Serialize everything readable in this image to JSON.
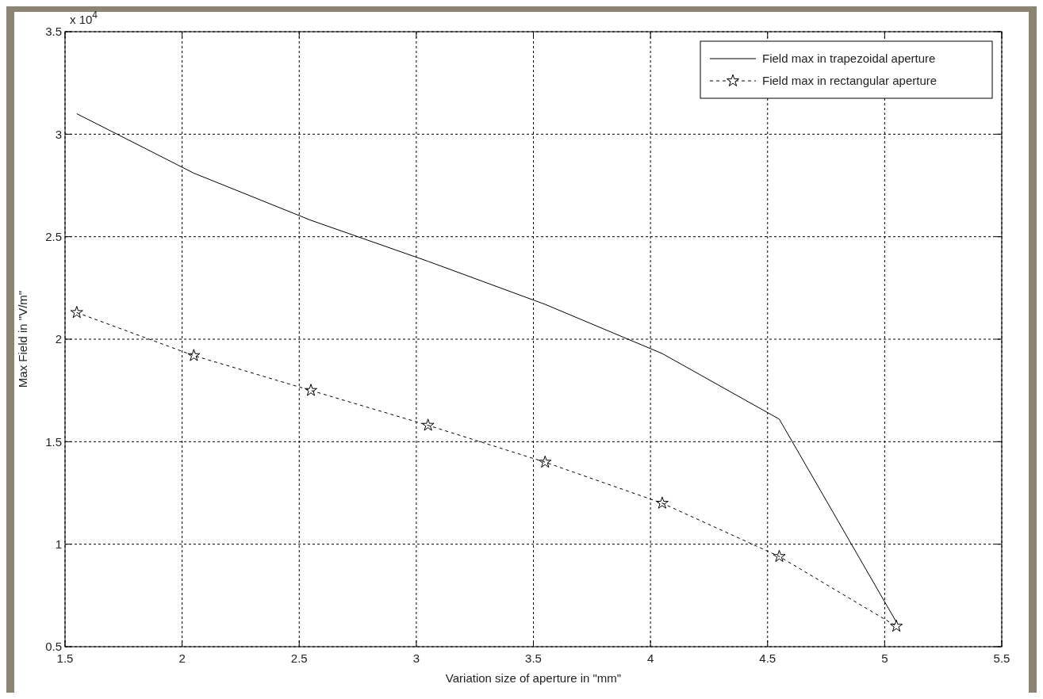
{
  "chart_data": {
    "type": "line",
    "xlabel": "Variation size of aperture in \"mm\"",
    "ylabel": "Max Field in \"V/m\"",
    "annotations": [
      "x 10$^{4}$"
    ],
    "x": [
      1.55,
      2.05,
      2.55,
      3.05,
      3.55,
      4.05,
      4.55,
      5.05
    ],
    "series": [
      {
        "name": "Field max in trapezoidal aperture",
        "color": "#000000",
        "values": [
          3.1,
          2.81,
          2.58,
          2.38,
          2.17,
          1.93,
          1.61,
          0.62
        ],
        "marker": "none",
        "line_style": "solid"
      },
      {
        "name": "Field max in rectangular aperture",
        "color": "#000000",
        "values": [
          2.13,
          1.92,
          1.75,
          1.58,
          1.4,
          1.2,
          0.94,
          0.6
        ],
        "marker": "star",
        "line_style": "dashed"
      }
    ],
    "xlim": [
      1.5,
      5.5
    ],
    "xticks": [
      1.5,
      2,
      2.5,
      3,
      3.5,
      4,
      4.5,
      5,
      5.5
    ],
    "ylim": [
      0.5,
      3.5
    ],
    "yticks": [
      0.5,
      1,
      1.5,
      2,
      2.5,
      3,
      3.5
    ],
    "grid": true,
    "legend": "top right"
  }
}
